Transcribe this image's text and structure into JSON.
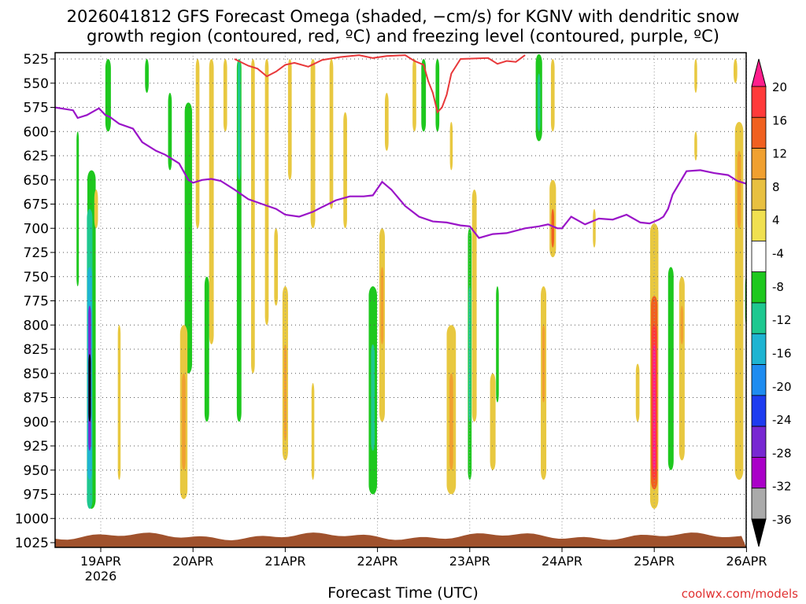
{
  "chart_data": {
    "type": "heatmap",
    "title_line1": "2026041812 GFS Forecast Omega (shaded, −cm/s) for KGNV with dendritic snow",
    "title_line2": "growth region (contoured, red, ºC) and freezing level (contoured, purple, ºC)",
    "xlabel": "Forecast Time (UTC)",
    "ylabel": "",
    "credit": "coolwx.com/models",
    "x_ticks": [
      {
        "day": 0,
        "label": "19APR",
        "sub": "2026"
      },
      {
        "day": 1,
        "label": "20APR",
        "sub": ""
      },
      {
        "day": 2,
        "label": "21APR",
        "sub": ""
      },
      {
        "day": 3,
        "label": "22APR",
        "sub": ""
      },
      {
        "day": 4,
        "label": "23APR",
        "sub": ""
      },
      {
        "day": 5,
        "label": "24APR",
        "sub": ""
      },
      {
        "day": 6,
        "label": "25APR",
        "sub": ""
      },
      {
        "day": 7,
        "label": "26APR",
        "sub": ""
      }
    ],
    "xlim_days": [
      -0.5,
      7
    ],
    "y_ticks": [
      "525",
      "550",
      "575",
      "600",
      "625",
      "650",
      "675",
      "700",
      "725",
      "750",
      "775",
      "800",
      "825",
      "850",
      "875",
      "900",
      "925",
      "950",
      "975",
      "1000",
      "1025"
    ],
    "ylim_hpa": [
      1025,
      520
    ],
    "colorbar": {
      "labels": [
        "20",
        "16",
        "12",
        "8",
        "4",
        "-4",
        "-8",
        "-12",
        "-16",
        "-20",
        "-24",
        "-28",
        "-32",
        "-36"
      ],
      "colors": [
        "#ff1e8c",
        "#ff3a3a",
        "#f06020",
        "#f0a030",
        "#e8c040",
        "#f0e050",
        "#ffffff",
        "#1ec81e",
        "#1ec890",
        "#1eb4d2",
        "#1e8cf0",
        "#1e3cf0",
        "#7828d2",
        "#aa00c8",
        "#aaaaaa",
        "#000000"
      ]
    },
    "omega_patches": [
      {
        "t": -0.1,
        "p1": 640,
        "p2": 990,
        "w": 0.09,
        "v": -4
      },
      {
        "t": -0.12,
        "p1": 680,
        "p2": 990,
        "w": 0.06,
        "v": -12
      },
      {
        "t": -0.12,
        "p1": 740,
        "p2": 960,
        "w": 0.05,
        "v": -16
      },
      {
        "t": -0.12,
        "p1": 780,
        "p2": 930,
        "w": 0.03,
        "v": -28
      },
      {
        "t": -0.12,
        "p1": 830,
        "p2": 900,
        "w": 0.012,
        "v": -36
      },
      {
        "t": -0.25,
        "p1": 600,
        "p2": 760,
        "w": 0.02,
        "v": -4
      },
      {
        "t": -0.05,
        "p1": 660,
        "p2": 700,
        "w": 0.04,
        "v": 4
      },
      {
        "t": 0.08,
        "p1": 525,
        "p2": 600,
        "w": 0.06,
        "v": -4
      },
      {
        "t": 0.2,
        "p1": 800,
        "p2": 960,
        "w": 0.03,
        "v": 4
      },
      {
        "t": 0.5,
        "p1": 525,
        "p2": 560,
        "w": 0.04,
        "v": -4
      },
      {
        "t": 0.75,
        "p1": 560,
        "p2": 640,
        "w": 0.04,
        "v": -4
      },
      {
        "t": 0.95,
        "p1": 570,
        "p2": 850,
        "w": 0.08,
        "v": -4
      },
      {
        "t": 0.9,
        "p1": 800,
        "p2": 980,
        "w": 0.08,
        "v": 4
      },
      {
        "t": 0.9,
        "p1": 850,
        "p2": 950,
        "w": 0.04,
        "v": 8
      },
      {
        "t": 1.05,
        "p1": 525,
        "p2": 700,
        "w": 0.04,
        "v": 4
      },
      {
        "t": 1.2,
        "p1": 525,
        "p2": 820,
        "w": 0.05,
        "v": 4
      },
      {
        "t": 1.35,
        "p1": 525,
        "p2": 600,
        "w": 0.04,
        "v": 4
      },
      {
        "t": 1.15,
        "p1": 750,
        "p2": 900,
        "w": 0.05,
        "v": -4
      },
      {
        "t": 1.5,
        "p1": 525,
        "p2": 900,
        "w": 0.05,
        "v": -8
      },
      {
        "t": 1.5,
        "p1": 525,
        "p2": 650,
        "w": 0.03,
        "v": -12
      },
      {
        "t": 1.65,
        "p1": 525,
        "p2": 850,
        "w": 0.04,
        "v": 4
      },
      {
        "t": 1.8,
        "p1": 525,
        "p2": 800,
        "w": 0.04,
        "v": 4
      },
      {
        "t": 1.9,
        "p1": 700,
        "p2": 780,
        "w": 0.04,
        "v": 4
      },
      {
        "t": 2.05,
        "p1": 525,
        "p2": 650,
        "w": 0.04,
        "v": 4
      },
      {
        "t": 2.3,
        "p1": 525,
        "p2": 700,
        "w": 0.05,
        "v": 4
      },
      {
        "t": 2.5,
        "p1": 525,
        "p2": 680,
        "w": 0.04,
        "v": 4
      },
      {
        "t": 2.3,
        "p1": 860,
        "p2": 960,
        "w": 0.03,
        "v": 4
      },
      {
        "t": 2.0,
        "p1": 760,
        "p2": 940,
        "w": 0.06,
        "v": 4
      },
      {
        "t": 2.0,
        "p1": 820,
        "p2": 920,
        "w": 0.03,
        "v": 8
      },
      {
        "t": 2.65,
        "p1": 580,
        "p2": 700,
        "w": 0.04,
        "v": 4
      },
      {
        "t": 2.95,
        "p1": 760,
        "p2": 975,
        "w": 0.09,
        "v": -8
      },
      {
        "t": 2.95,
        "p1": 820,
        "p2": 930,
        "w": 0.04,
        "v": -12
      },
      {
        "t": 3.05,
        "p1": 700,
        "p2": 900,
        "w": 0.06,
        "v": 4
      },
      {
        "t": 3.05,
        "p1": 740,
        "p2": 820,
        "w": 0.03,
        "v": 8
      },
      {
        "t": 3.1,
        "p1": 560,
        "p2": 620,
        "w": 0.04,
        "v": 4
      },
      {
        "t": 3.4,
        "p1": 525,
        "p2": 600,
        "w": 0.04,
        "v": 4
      },
      {
        "t": 3.5,
        "p1": 525,
        "p2": 600,
        "w": 0.05,
        "v": -8
      },
      {
        "t": 3.65,
        "p1": 525,
        "p2": 600,
        "w": 0.04,
        "v": -4
      },
      {
        "t": 3.8,
        "p1": 800,
        "p2": 975,
        "w": 0.1,
        "v": 4
      },
      {
        "t": 3.8,
        "p1": 850,
        "p2": 950,
        "w": 0.04,
        "v": 8
      },
      {
        "t": 3.8,
        "p1": 590,
        "p2": 640,
        "w": 0.03,
        "v": 4
      },
      {
        "t": 4.0,
        "p1": 700,
        "p2": 960,
        "w": 0.04,
        "v": -8
      },
      {
        "t": 4.0,
        "p1": 760,
        "p2": 900,
        "w": 0.02,
        "v": -12
      },
      {
        "t": 4.05,
        "p1": 660,
        "p2": 900,
        "w": 0.05,
        "v": 4
      },
      {
        "t": 4.25,
        "p1": 850,
        "p2": 950,
        "w": 0.06,
        "v": 4
      },
      {
        "t": 4.3,
        "p1": 760,
        "p2": 880,
        "w": 0.03,
        "v": -4
      },
      {
        "t": 4.75,
        "p1": 520,
        "p2": 610,
        "w": 0.07,
        "v": -8
      },
      {
        "t": 4.75,
        "p1": 540,
        "p2": 600,
        "w": 0.03,
        "v": -12
      },
      {
        "t": 4.9,
        "p1": 525,
        "p2": 600,
        "w": 0.04,
        "v": 4
      },
      {
        "t": 4.9,
        "p1": 650,
        "p2": 730,
        "w": 0.07,
        "v": 4
      },
      {
        "t": 4.9,
        "p1": 680,
        "p2": 720,
        "w": 0.03,
        "v": 12
      },
      {
        "t": 4.8,
        "p1": 760,
        "p2": 960,
        "w": 0.06,
        "v": 4
      },
      {
        "t": 4.8,
        "p1": 800,
        "p2": 880,
        "w": 0.03,
        "v": 8
      },
      {
        "t": 5.35,
        "p1": 680,
        "p2": 720,
        "w": 0.03,
        "v": 4
      },
      {
        "t": 6.0,
        "p1": 695,
        "p2": 990,
        "w": 0.09,
        "v": 4
      },
      {
        "t": 6.0,
        "p1": 770,
        "p2": 970,
        "w": 0.07,
        "v": 12
      },
      {
        "t": 6.0,
        "p1": 800,
        "p2": 960,
        "w": 0.05,
        "v": 16
      },
      {
        "t": 6.0,
        "p1": 820,
        "p2": 950,
        "w": 0.03,
        "v": 20
      },
      {
        "t": 6.18,
        "p1": 740,
        "p2": 950,
        "w": 0.06,
        "v": -8
      },
      {
        "t": 6.3,
        "p1": 750,
        "p2": 940,
        "w": 0.06,
        "v": 4
      },
      {
        "t": 6.3,
        "p1": 780,
        "p2": 820,
        "w": 0.03,
        "v": 8
      },
      {
        "t": 5.82,
        "p1": 840,
        "p2": 900,
        "w": 0.04,
        "v": 4
      },
      {
        "t": 6.45,
        "p1": 600,
        "p2": 630,
        "w": 0.03,
        "v": 4
      },
      {
        "t": 6.92,
        "p1": 590,
        "p2": 960,
        "w": 0.09,
        "v": 4
      },
      {
        "t": 6.92,
        "p1": 620,
        "p2": 700,
        "w": 0.04,
        "v": 8
      },
      {
        "t": 6.88,
        "p1": 525,
        "p2": 550,
        "w": 0.04,
        "v": 4
      },
      {
        "t": 6.45,
        "p1": 525,
        "p2": 560,
        "w": 0.03,
        "v": 4
      },
      {
        "t": 7.0,
        "p1": 750,
        "p2": 800,
        "w": 0.03,
        "v": -8
      }
    ],
    "freezing_level": [
      [
        -0.5,
        575
      ],
      [
        -0.3,
        578
      ],
      [
        -0.25,
        586
      ],
      [
        -0.15,
        583
      ],
      [
        -0.02,
        576
      ],
      [
        0.05,
        583
      ],
      [
        0.1,
        585
      ],
      [
        0.2,
        592
      ],
      [
        0.35,
        597
      ],
      [
        0.45,
        611
      ],
      [
        0.6,
        620
      ],
      [
        0.7,
        624
      ],
      [
        0.85,
        633
      ],
      [
        0.95,
        650
      ],
      [
        1.0,
        653
      ],
      [
        1.1,
        650
      ],
      [
        1.2,
        649
      ],
      [
        1.3,
        651
      ],
      [
        1.45,
        660
      ],
      [
        1.6,
        670
      ],
      [
        1.75,
        675
      ],
      [
        1.9,
        680
      ],
      [
        2.0,
        686
      ],
      [
        2.15,
        688
      ],
      [
        2.3,
        683
      ],
      [
        2.4,
        678
      ],
      [
        2.55,
        671
      ],
      [
        2.7,
        667
      ],
      [
        2.85,
        667
      ],
      [
        2.95,
        666
      ],
      [
        3.0,
        659
      ],
      [
        3.05,
        652
      ],
      [
        3.15,
        660
      ],
      [
        3.3,
        677
      ],
      [
        3.45,
        688
      ],
      [
        3.6,
        693
      ],
      [
        3.75,
        694
      ],
      [
        3.9,
        697
      ],
      [
        4.0,
        698
      ],
      [
        4.1,
        710
      ],
      [
        4.25,
        706
      ],
      [
        4.4,
        705
      ],
      [
        4.6,
        700
      ],
      [
        4.75,
        698
      ],
      [
        4.85,
        696
      ],
      [
        4.95,
        700
      ],
      [
        5.0,
        700
      ],
      [
        5.1,
        688
      ],
      [
        5.25,
        696
      ],
      [
        5.4,
        690
      ],
      [
        5.55,
        691
      ],
      [
        5.7,
        686
      ],
      [
        5.85,
        694
      ],
      [
        5.95,
        695
      ],
      [
        6.05,
        691
      ],
      [
        6.1,
        688
      ],
      [
        6.15,
        680
      ],
      [
        6.2,
        665
      ],
      [
        6.35,
        641
      ],
      [
        6.5,
        640
      ],
      [
        6.65,
        643
      ],
      [
        6.8,
        645
      ],
      [
        6.9,
        651
      ],
      [
        7.0,
        654
      ]
    ],
    "dgz_red": [
      [
        1.45,
        525
      ],
      [
        1.6,
        532
      ],
      [
        1.7,
        535
      ],
      [
        1.8,
        543
      ],
      [
        1.9,
        538
      ],
      [
        2.0,
        531
      ],
      [
        2.1,
        529
      ],
      [
        2.25,
        533
      ],
      [
        2.4,
        526
      ],
      [
        2.6,
        523
      ],
      [
        2.8,
        521
      ],
      [
        2.95,
        524
      ],
      [
        3.1,
        522
      ],
      [
        3.3,
        521
      ],
      [
        3.4,
        527
      ],
      [
        3.5,
        531
      ],
      [
        3.55,
        548
      ],
      [
        3.6,
        560
      ],
      [
        3.65,
        580
      ],
      [
        3.7,
        575
      ],
      [
        3.75,
        562
      ],
      [
        3.8,
        540
      ],
      [
        3.9,
        525
      ],
      [
        4.2,
        524
      ],
      [
        4.3,
        530
      ],
      [
        4.4,
        527
      ],
      [
        4.5,
        528
      ],
      [
        4.6,
        521
      ]
    ]
  }
}
